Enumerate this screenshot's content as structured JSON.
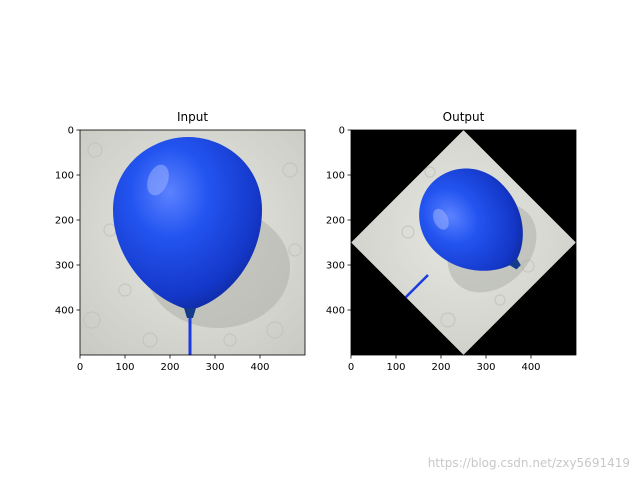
{
  "chart_data": [
    {
      "type": "image",
      "title": "Input",
      "xlim": [
        0,
        500
      ],
      "ylim": [
        500,
        0
      ],
      "xticks": [
        "0",
        "100",
        "200",
        "300",
        "400"
      ],
      "yticks": [
        "0",
        "100",
        "200",
        "300",
        "400"
      ],
      "content": "blue balloon on white textured background, string at bottom center"
    },
    {
      "type": "image",
      "title": "Output",
      "xlim": [
        0,
        500
      ],
      "ylim": [
        500,
        0
      ],
      "xticks": [
        "0",
        "100",
        "200",
        "300",
        "400"
      ],
      "yticks": [
        "0",
        "100",
        "200",
        "300",
        "400"
      ],
      "content": "input image rotated 45 degrees and scaled down, black background",
      "rotation_degrees": 45
    }
  ],
  "watermark": "https://blog.csdn.net/zxy5691419",
  "colors": {
    "balloon": "#1a46e0",
    "paper": "#d9dbd3",
    "background": "#000000"
  }
}
